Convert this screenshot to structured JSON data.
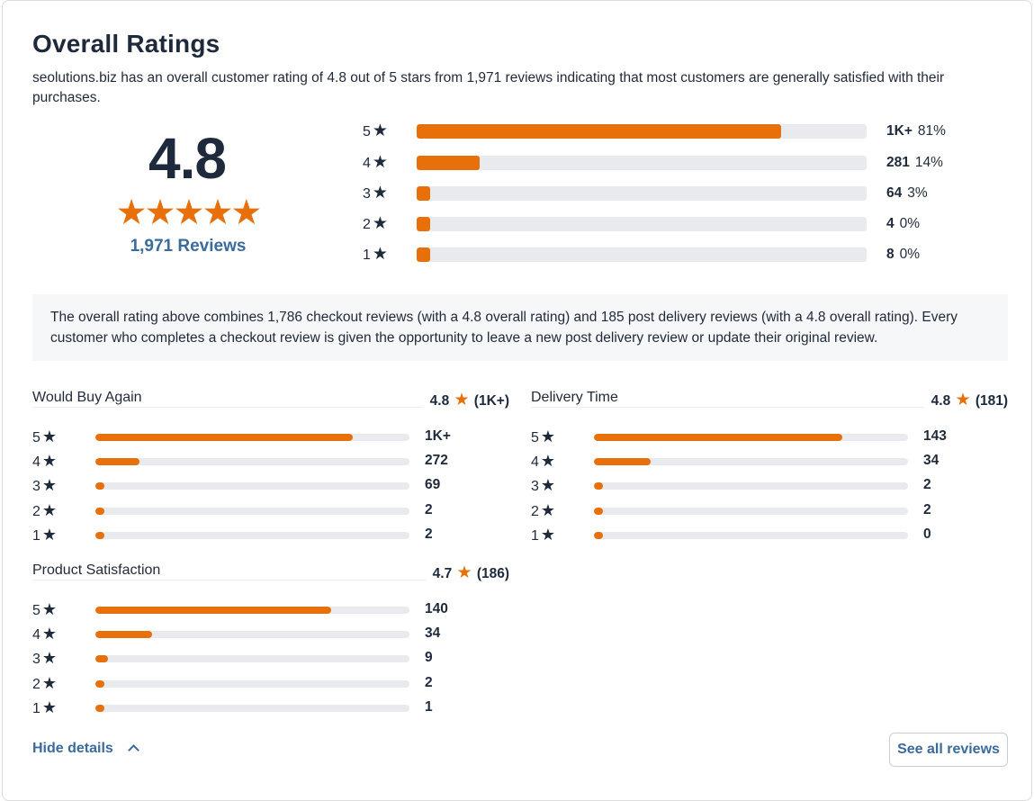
{
  "header": {
    "title": "Overall Ratings",
    "description": "seolutions.biz has an overall customer rating of 4.8 out of 5 stars from 1,971 reviews indicating that most customers are generally satisfied with their purchases."
  },
  "summary": {
    "rating": "4.8",
    "stars": "★★★★★",
    "reviews_link": "1,971 Reviews"
  },
  "distribution": [
    {
      "label": "5",
      "count": "1K+",
      "percent": "81%",
      "fraction": 0.81
    },
    {
      "label": "4",
      "count": "281",
      "percent": "14%",
      "fraction": 0.14
    },
    {
      "label": "3",
      "count": "64",
      "percent": "3%",
      "fraction": 0.03
    },
    {
      "label": "2",
      "count": "4",
      "percent": "0%",
      "fraction": 0.0
    },
    {
      "label": "1",
      "count": "8",
      "percent": "0%",
      "fraction": 0.0
    }
  ],
  "note": "The overall rating above combines 1,786 checkout reviews (with a 4.8 overall rating) and 185 post delivery reviews (with a 4.8 overall rating). Every customer who completes a checkout review is given the opportunity to leave a new post delivery review or update their original review.",
  "subratings": {
    "would_buy_again": {
      "name": "Would Buy Again",
      "score": "4.8",
      "total": "(1K+)",
      "rows": [
        {
          "label": "5",
          "count": "1K+",
          "fraction": 0.82
        },
        {
          "label": "4",
          "count": "272",
          "fraction": 0.14
        },
        {
          "label": "3",
          "count": "69",
          "fraction": 0.03
        },
        {
          "label": "2",
          "count": "2",
          "fraction": 0.0
        },
        {
          "label": "1",
          "count": "2",
          "fraction": 0.0
        }
      ]
    },
    "delivery_time": {
      "name": "Delivery Time",
      "score": "4.8",
      "total": "(181)",
      "rows": [
        {
          "label": "5",
          "count": "143",
          "fraction": 0.79
        },
        {
          "label": "4",
          "count": "34",
          "fraction": 0.18
        },
        {
          "label": "3",
          "count": "2",
          "fraction": 0.01
        },
        {
          "label": "2",
          "count": "2",
          "fraction": 0.01
        },
        {
          "label": "1",
          "count": "0",
          "fraction": 0.0
        }
      ]
    },
    "product_satisfaction": {
      "name": "Product Satisfaction",
      "score": "4.7",
      "total": "(186)",
      "rows": [
        {
          "label": "5",
          "count": "140",
          "fraction": 0.75
        },
        {
          "label": "4",
          "count": "34",
          "fraction": 0.18
        },
        {
          "label": "3",
          "count": "9",
          "fraction": 0.04
        },
        {
          "label": "2",
          "count": "2",
          "fraction": 0.01
        },
        {
          "label": "1",
          "count": "1",
          "fraction": 0.0
        }
      ]
    }
  },
  "footer": {
    "hide_details": "Hide details",
    "see_all": "See all reviews"
  },
  "colors": {
    "accent": "#e8700a",
    "link": "#3b6a9c",
    "track": "#e8eaee"
  },
  "icons": {
    "star": "star-icon",
    "chevron": "chevron-up-icon"
  }
}
